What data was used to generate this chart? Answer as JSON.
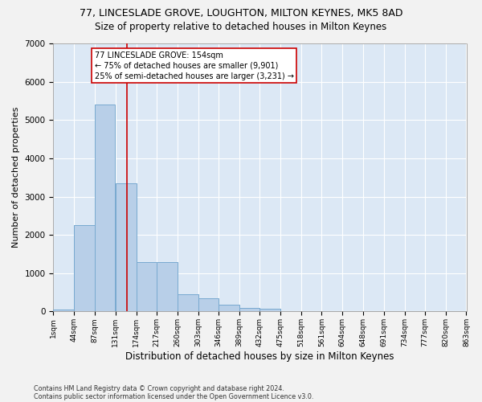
{
  "title_line1": "77, LINCESLADE GROVE, LOUGHTON, MILTON KEYNES, MK5 8AD",
  "title_line2": "Size of property relative to detached houses in Milton Keynes",
  "xlabel": "Distribution of detached houses by size in Milton Keynes",
  "ylabel": "Number of detached properties",
  "footer_line1": "Contains HM Land Registry data © Crown copyright and database right 2024.",
  "footer_line2": "Contains public sector information licensed under the Open Government Licence v3.0.",
  "annotation_line1": "77 LINCESLADE GROVE: 154sqm",
  "annotation_line2": "← 75% of detached houses are smaller (9,901)",
  "annotation_line3": "25% of semi-detached houses are larger (3,231) →",
  "property_size": 154,
  "bar_left_edges": [
    1,
    44,
    87,
    131,
    174,
    217,
    260,
    303,
    346,
    389,
    432,
    475,
    518,
    561,
    604,
    648,
    691,
    734,
    777,
    820
  ],
  "bar_heights": [
    50,
    2250,
    5400,
    3350,
    1300,
    1300,
    450,
    350,
    175,
    100,
    75,
    0,
    0,
    0,
    0,
    0,
    0,
    0,
    0,
    0
  ],
  "bin_width": 43,
  "bar_color": "#b8cfe8",
  "bar_edge_color": "#7aaad0",
  "vline_color": "#cc0000",
  "annotation_box_color": "#cc0000",
  "plot_bg_color": "#dce8f5",
  "fig_bg_color": "#f2f2f2",
  "grid_color": "#ffffff",
  "ylim": [
    0,
    7000
  ],
  "yticks": [
    0,
    1000,
    2000,
    3000,
    4000,
    5000,
    6000,
    7000
  ],
  "xtick_labels": [
    "1sqm",
    "44sqm",
    "87sqm",
    "131sqm",
    "174sqm",
    "217sqm",
    "260sqm",
    "303sqm",
    "346sqm",
    "389sqm",
    "432sqm",
    "475sqm",
    "518sqm",
    "561sqm",
    "604sqm",
    "648sqm",
    "691sqm",
    "734sqm",
    "777sqm",
    "820sqm",
    "863sqm"
  ],
  "title1_fontsize": 9,
  "title2_fontsize": 8.5,
  "ylabel_fontsize": 8,
  "xlabel_fontsize": 8.5
}
